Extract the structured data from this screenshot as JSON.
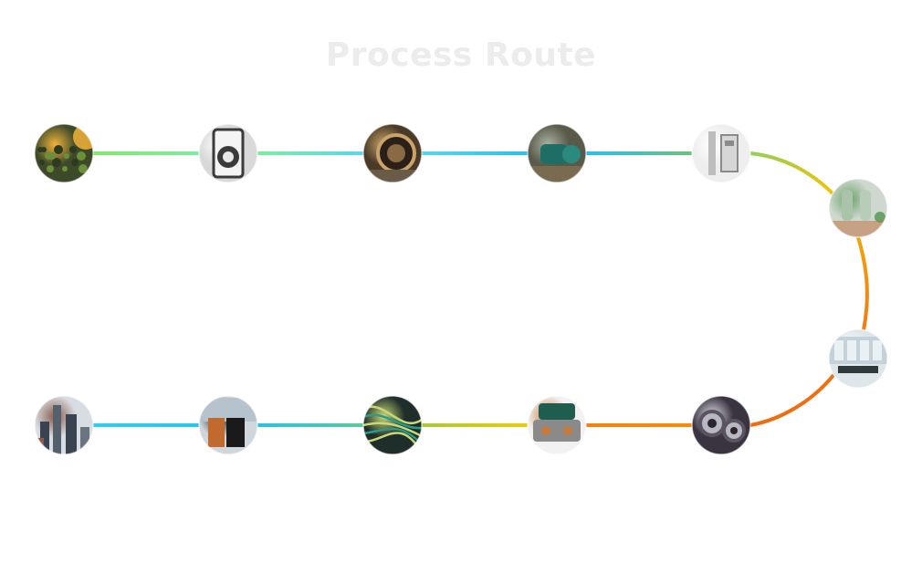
{
  "title": "Process Route",
  "stations": [
    {
      "icon": "compost-soil-icon",
      "palette": {
        "bg": "#3d4a2a",
        "accent": "#6b8f3a",
        "glow": "#f2b33a"
      }
    },
    {
      "icon": "shredder-machine-icon",
      "palette": {
        "bg": "#d9d9d9",
        "accent": "#3a3a3a",
        "glow": "#ffffff"
      }
    },
    {
      "icon": "drum-dryer-icon",
      "palette": {
        "bg": "#4a3a28",
        "accent": "#8a6a44",
        "glow": "#c9a36a"
      }
    },
    {
      "icon": "green-pump-icon",
      "palette": {
        "bg": "#5a5a4a",
        "accent": "#1f6e66",
        "glow": "#a8b0a0"
      }
    },
    {
      "icon": "sorting-equipment-icon",
      "palette": {
        "bg": "#eeeeee",
        "accent": "#8a8a8a",
        "glow": "#ffffff"
      }
    },
    {
      "icon": "lab-reactor-icon",
      "palette": {
        "bg": "#cfd8cf",
        "accent": "#c06a3a",
        "glow": "#6aa36a"
      }
    },
    {
      "icon": "control-room-icon",
      "palette": {
        "bg": "#dfe6ea",
        "accent": "#2f3a3a",
        "glow": "#ffffff"
      }
    },
    {
      "icon": "steel-pipes-icon",
      "palette": {
        "bg": "#3a3340",
        "accent": "#b8b8c0",
        "glow": "#e0e0e8"
      }
    },
    {
      "icon": "engine-block-icon",
      "palette": {
        "bg": "#f2f2f2",
        "accent": "#1f5e4e",
        "glow": "#c97a3a"
      }
    },
    {
      "icon": "cable-bundle-icon",
      "palette": {
        "bg": "#1f2e2a",
        "accent": "#2a9a8a",
        "glow": "#c8d878"
      }
    },
    {
      "icon": "battery-cabinet-icon",
      "palette": {
        "bg": "#cfd6dc",
        "accent": "#c06a30",
        "glow": "#1a1a1a"
      }
    },
    {
      "icon": "city-skyline-icon",
      "palette": {
        "bg": "#d8dde3",
        "accent": "#3a4450",
        "glow": "#8a5a4a"
      }
    }
  ],
  "segment_colors": [
    [
      "#7fe86a",
      "#7cee9e"
    ],
    [
      "#7cee9e",
      "#57d8ea"
    ],
    [
      "#57d8ea",
      "#29bff0"
    ],
    [
      "#29bff0",
      "#6ac27c"
    ],
    [
      "#8fd05a",
      "#f2c20a"
    ],
    [
      "#f2a40c",
      "#f27a12"
    ],
    [
      "#f07010",
      "#f06a10"
    ],
    [
      "#f68a10",
      "#f48212"
    ],
    [
      "#e8cc10",
      "#a8c840"
    ],
    [
      "#5ec89a",
      "#2ec0e0"
    ],
    [
      "#2cc4ea",
      "#36ccea"
    ]
  ]
}
